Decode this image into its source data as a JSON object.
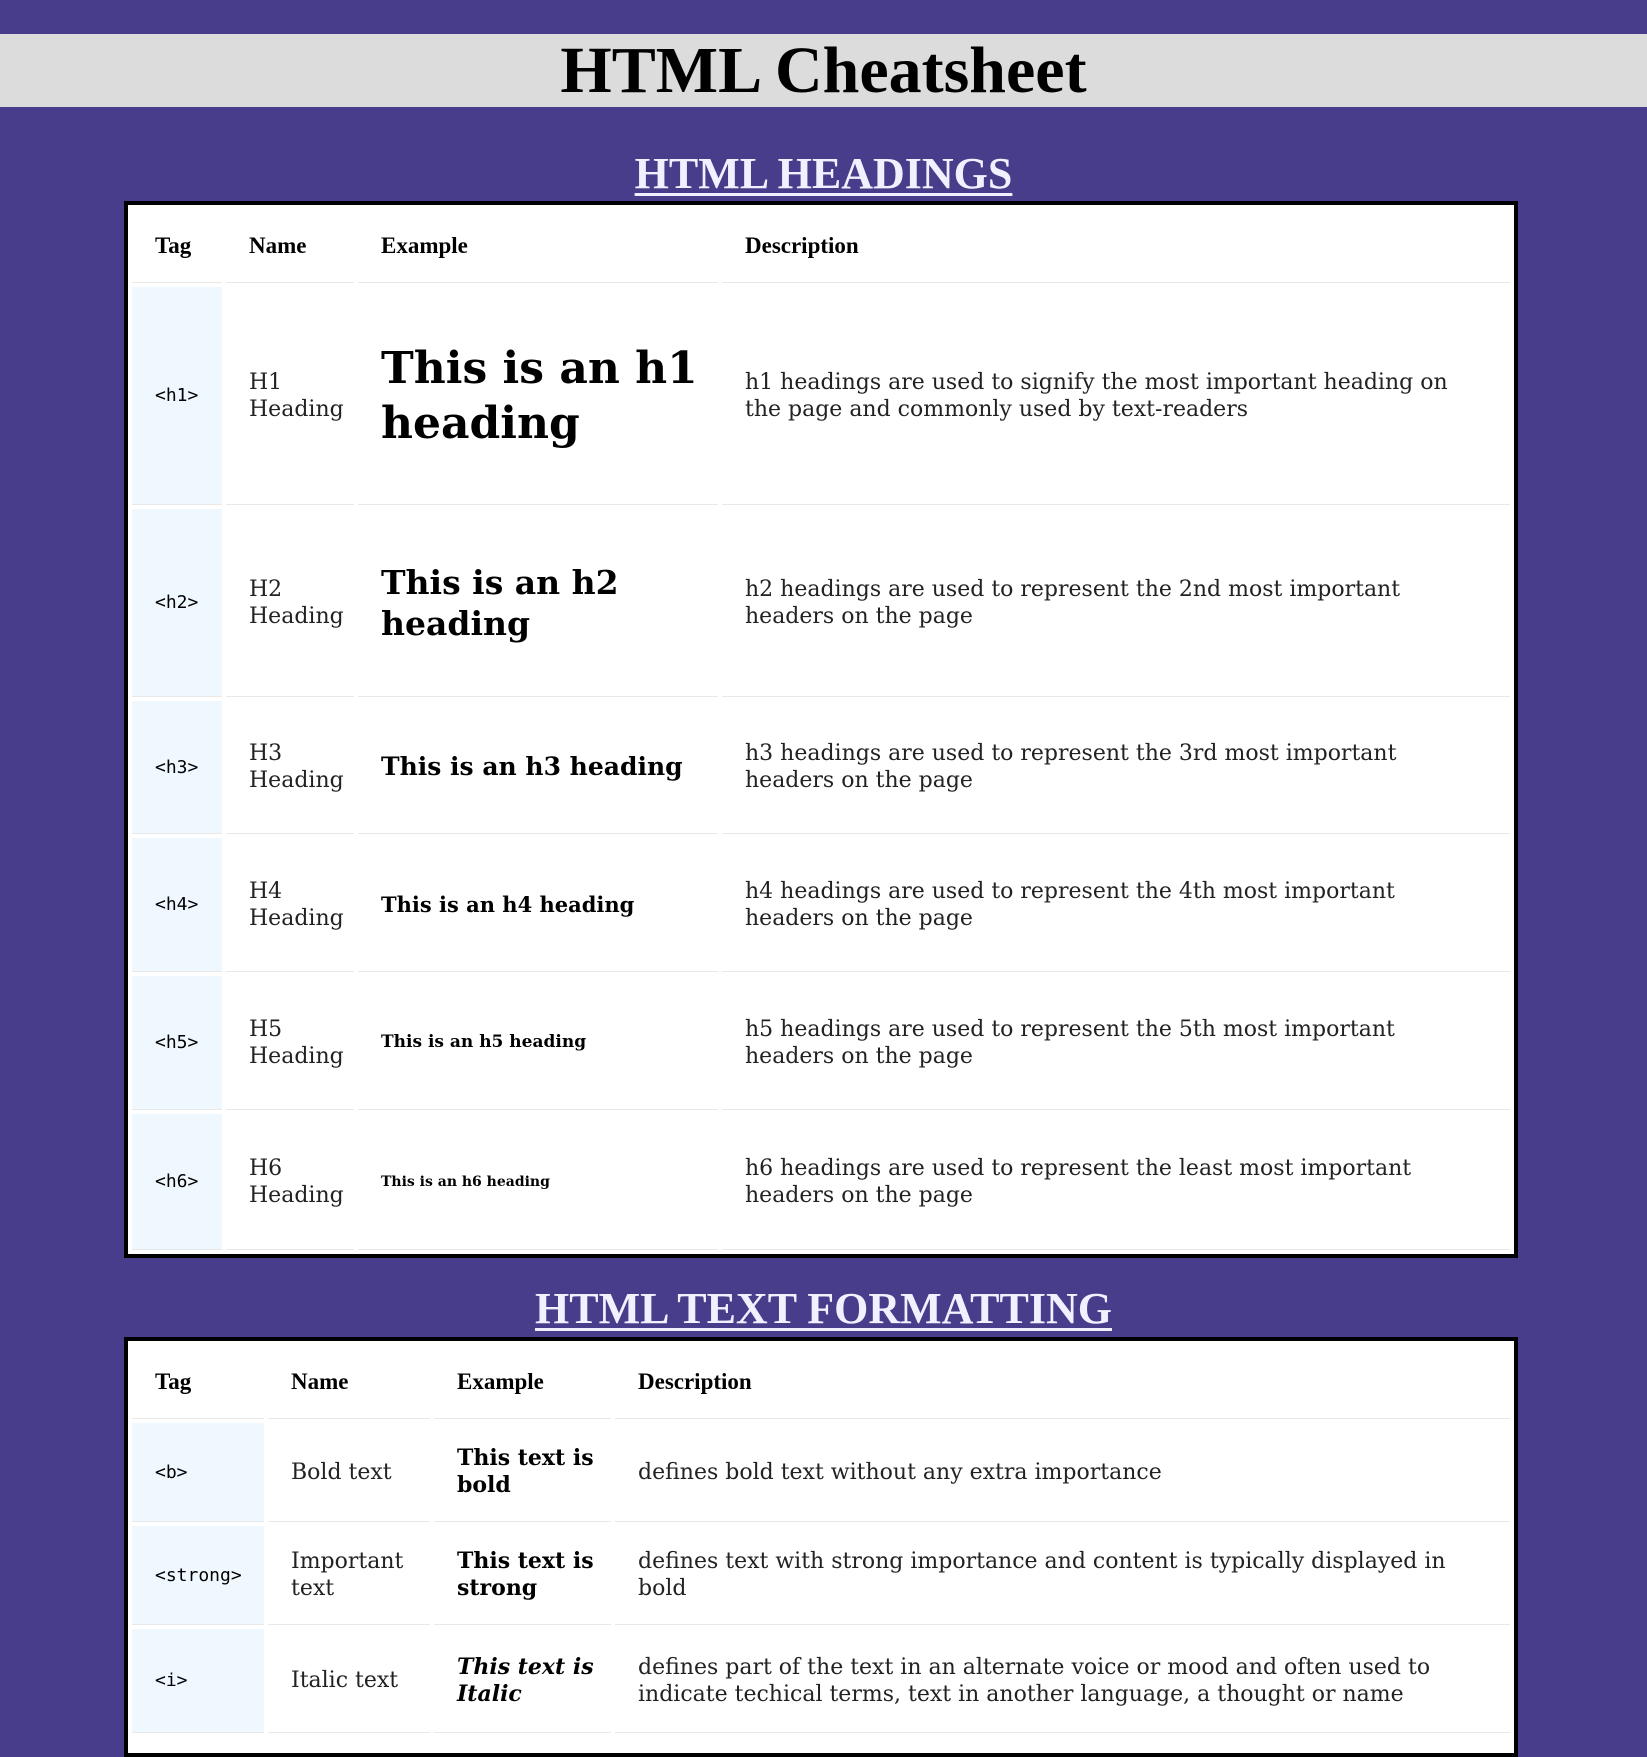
{
  "page": {
    "title": "HTML Cheatsheet"
  },
  "headings_section": {
    "heading": "HTML HEADINGS",
    "columns": [
      "Tag",
      "Name",
      "Example",
      "Description"
    ],
    "rows": [
      {
        "tag": "<h1>",
        "name": "H1 Heading",
        "example": "This is an h1 heading",
        "description": "h1 headings are used to signify the most important heading on the page and commonly used by text-readers"
      },
      {
        "tag": "<h2>",
        "name": "H2 Heading",
        "example": "This is an h2 heading",
        "description": "h2 headings are used to represent the 2nd most important headers on the page"
      },
      {
        "tag": "<h3>",
        "name": "H3 Heading",
        "example": "This is an h3 heading",
        "description": "h3 headings are used to represent the 3rd most important headers on the page"
      },
      {
        "tag": "<h4>",
        "name": "H4 Heading",
        "example": "This is an h4 heading",
        "description": "h4 headings are used to represent the 4th most important headers on the page"
      },
      {
        "tag": "<h5>",
        "name": "H5 Heading",
        "example": "This is an h5 heading",
        "description": "h5 headings are used to represent the 5th most important headers on the page"
      },
      {
        "tag": "<h6>",
        "name": "H6 Heading",
        "example": "This is an h6 heading",
        "description": "h6 headings are used to represent the least most important headers on the page"
      }
    ]
  },
  "formatting_section": {
    "heading": "HTML TEXT FORMATTING",
    "columns": [
      "Tag",
      "Name",
      "Example",
      "Description"
    ],
    "rows": [
      {
        "tag": "<b>",
        "name": "Bold text",
        "example": "This text is bold",
        "description": "defines bold text without any extra importance"
      },
      {
        "tag": "<strong>",
        "name": "Important text",
        "example": "This text is strong",
        "description": "defines text with strong importance and content is typically displayed in bold"
      },
      {
        "tag": "<i>",
        "name": "Italic text",
        "example": "This text is Italic",
        "description": "defines part of the text in an alternate voice or mood and often used to indicate techical terms, text in another language, a thought or name"
      }
    ]
  },
  "colors": {
    "page_background": "#483d8b",
    "title_bar_background": "#dcdcdc",
    "section_heading_text": "#f0f0ff",
    "tag_cell_background": "#f0f8ff",
    "table_background": "#ffffff"
  }
}
